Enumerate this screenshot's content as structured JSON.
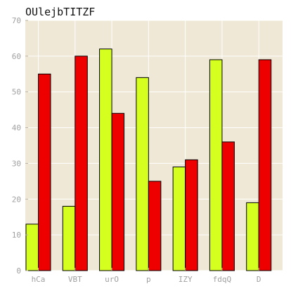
{
  "chart_data": {
    "type": "bar",
    "title": "OUlejbTITZF",
    "xlabel": "",
    "ylabel": "",
    "categories": [
      "hCa",
      "VBT",
      "urO",
      "p",
      "IZY",
      "fdqQ",
      "D"
    ],
    "series": [
      {
        "color": "#d4ff1f",
        "values": [
          13,
          18,
          62,
          54,
          29,
          59,
          19
        ]
      },
      {
        "color": "#ee0000",
        "values": [
          55,
          60,
          44,
          25,
          31,
          36,
          59
        ]
      }
    ],
    "ylim": [
      0,
      70
    ],
    "yticks": [
      0,
      10,
      20,
      30,
      40,
      50,
      60,
      70
    ],
    "grid": true,
    "legend": "none",
    "colors": {
      "plot_background": "#efe8d6",
      "grid": "#ffffff",
      "bar_edge": "#000000",
      "tick_text": "#a0a0a0"
    }
  }
}
